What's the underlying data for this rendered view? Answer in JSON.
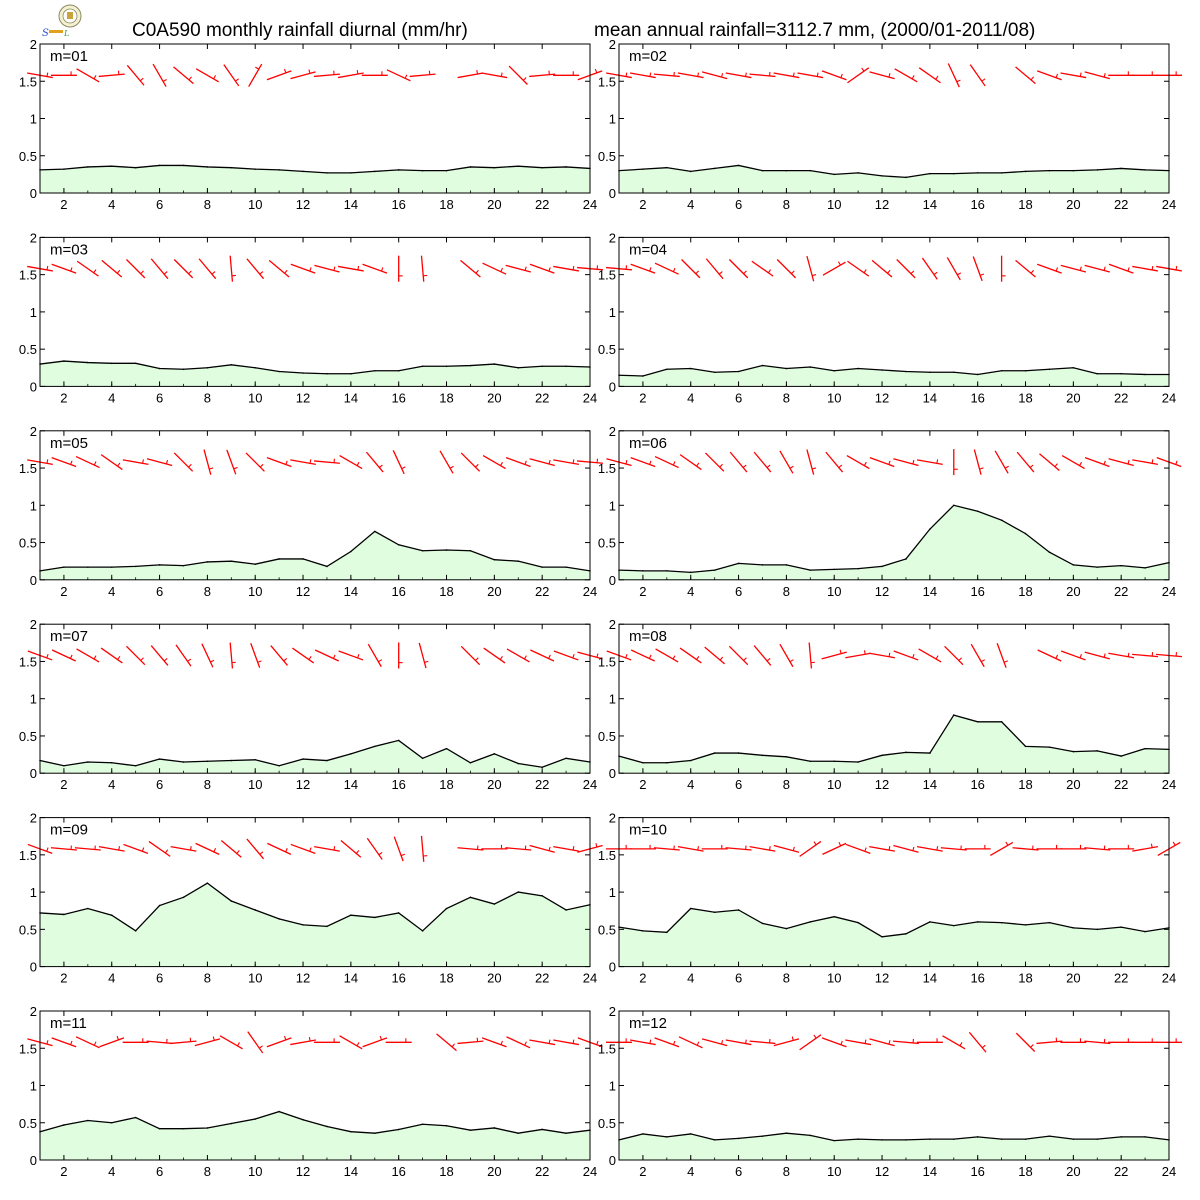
{
  "header": {
    "title_left": "C0A590 monthly rainfall diurnal (mm/hr)",
    "title_right": "mean annual rainfall=3112.7 mm, (2000/01-2011/08)",
    "logo": "lab-logo-icon"
  },
  "colors": {
    "fill": "#e0fde0",
    "line": "#000000",
    "wind": "#ff0000"
  },
  "chart_data": [
    {
      "type": "area",
      "label": "m=01",
      "x": [
        1,
        2,
        3,
        4,
        5,
        6,
        7,
        8,
        9,
        10,
        11,
        12,
        13,
        14,
        15,
        16,
        17,
        18,
        19,
        20,
        21,
        22,
        23,
        24
      ],
      "values": [
        0.31,
        0.32,
        0.35,
        0.36,
        0.34,
        0.37,
        0.37,
        0.35,
        0.34,
        0.32,
        0.31,
        0.29,
        0.27,
        0.27,
        0.29,
        0.31,
        0.3,
        0.3,
        0.35,
        0.34,
        0.36,
        0.34,
        0.35,
        0.33
      ],
      "wind_dir_deg": [
        100,
        90,
        120,
        85,
        140,
        150,
        130,
        120,
        145,
        30,
        70,
        75,
        85,
        80,
        90,
        115,
        85,
        null,
        80,
        100,
        135,
        85,
        90,
        70
      ],
      "xlim": [
        1,
        24
      ],
      "ylim": [
        0,
        2
      ],
      "xticks": [
        2,
        4,
        6,
        8,
        10,
        12,
        14,
        16,
        18,
        20,
        22,
        24
      ],
      "yticks": [
        0,
        0.5,
        1,
        1.5,
        2
      ]
    },
    {
      "type": "area",
      "label": "m=02",
      "x": [
        1,
        2,
        3,
        4,
        5,
        6,
        7,
        8,
        9,
        10,
        11,
        12,
        13,
        14,
        15,
        16,
        17,
        18,
        19,
        20,
        21,
        22,
        23,
        24
      ],
      "values": [
        0.3,
        0.32,
        0.34,
        0.29,
        0.33,
        0.37,
        0.3,
        0.3,
        0.3,
        0.25,
        0.27,
        0.23,
        0.21,
        0.26,
        0.26,
        0.27,
        0.27,
        0.29,
        0.3,
        0.3,
        0.31,
        0.33,
        0.31,
        0.3
      ],
      "wind_dir_deg": [
        100,
        100,
        95,
        100,
        105,
        100,
        95,
        100,
        100,
        110,
        55,
        105,
        120,
        125,
        155,
        145,
        null,
        130,
        110,
        100,
        105,
        90,
        90,
        90
      ],
      "xlim": [
        1,
        24
      ],
      "ylim": [
        0,
        2
      ],
      "xticks": [
        2,
        4,
        6,
        8,
        10,
        12,
        14,
        16,
        18,
        20,
        22,
        24
      ],
      "yticks": [
        0,
        0.5,
        1,
        1.5,
        2
      ]
    },
    {
      "type": "area",
      "label": "m=03",
      "x": [
        1,
        2,
        3,
        4,
        5,
        6,
        7,
        8,
        9,
        10,
        11,
        12,
        13,
        14,
        15,
        16,
        17,
        18,
        19,
        20,
        21,
        22,
        23,
        24
      ],
      "values": [
        0.3,
        0.34,
        0.32,
        0.31,
        0.31,
        0.24,
        0.23,
        0.25,
        0.29,
        0.25,
        0.2,
        0.18,
        0.17,
        0.17,
        0.21,
        0.21,
        0.27,
        0.27,
        0.28,
        0.3,
        0.25,
        0.27,
        0.27,
        0.26
      ],
      "wind_dir_deg": [
        100,
        110,
        125,
        130,
        135,
        140,
        135,
        140,
        175,
        140,
        130,
        110,
        105,
        100,
        110,
        180,
        175,
        null,
        130,
        115,
        105,
        110,
        100,
        95
      ],
      "xlim": [
        1,
        24
      ],
      "ylim": [
        0,
        2
      ],
      "xticks": [
        2,
        4,
        6,
        8,
        10,
        12,
        14,
        16,
        18,
        20,
        22,
        24
      ],
      "yticks": [
        0,
        0.5,
        1,
        1.5,
        2
      ]
    },
    {
      "type": "area",
      "label": "m=04",
      "x": [
        1,
        2,
        3,
        4,
        5,
        6,
        7,
        8,
        9,
        10,
        11,
        12,
        13,
        14,
        15,
        16,
        17,
        18,
        19,
        20,
        21,
        22,
        23,
        24
      ],
      "values": [
        0.15,
        0.14,
        0.23,
        0.24,
        0.19,
        0.2,
        0.28,
        0.24,
        0.26,
        0.21,
        0.24,
        0.22,
        0.2,
        0.19,
        0.19,
        0.16,
        0.21,
        0.21,
        0.23,
        0.25,
        0.17,
        0.17,
        0.16,
        0.16
      ],
      "wind_dir_deg": [
        95,
        110,
        115,
        135,
        140,
        135,
        125,
        135,
        165,
        60,
        125,
        130,
        135,
        145,
        150,
        160,
        180,
        130,
        110,
        105,
        105,
        110,
        100,
        100
      ],
      "xlim": [
        1,
        24
      ],
      "ylim": [
        0,
        2
      ],
      "xticks": [
        2,
        4,
        6,
        8,
        10,
        12,
        14,
        16,
        18,
        20,
        22,
        24
      ],
      "yticks": [
        0,
        0.5,
        1,
        1.5,
        2
      ]
    },
    {
      "type": "area",
      "label": "m=05",
      "x": [
        1,
        2,
        3,
        4,
        5,
        6,
        7,
        8,
        9,
        10,
        11,
        12,
        13,
        14,
        15,
        16,
        17,
        18,
        19,
        20,
        21,
        22,
        23,
        24
      ],
      "values": [
        0.12,
        0.17,
        0.17,
        0.17,
        0.18,
        0.2,
        0.19,
        0.24,
        0.25,
        0.21,
        0.28,
        0.28,
        0.18,
        0.38,
        0.65,
        0.47,
        0.39,
        0.4,
        0.39,
        0.27,
        0.25,
        0.17,
        0.17,
        0.12
      ],
      "wind_dir_deg": [
        100,
        110,
        115,
        125,
        100,
        105,
        135,
        165,
        160,
        135,
        110,
        100,
        95,
        120,
        140,
        155,
        null,
        150,
        135,
        120,
        110,
        105,
        100,
        95
      ],
      "xlim": [
        1,
        24
      ],
      "ylim": [
        0,
        2
      ],
      "xticks": [
        2,
        4,
        6,
        8,
        10,
        12,
        14,
        16,
        18,
        20,
        22,
        24
      ],
      "yticks": [
        0,
        0.5,
        1,
        1.5,
        2
      ]
    },
    {
      "type": "area",
      "label": "m=06",
      "x": [
        1,
        2,
        3,
        4,
        5,
        6,
        7,
        8,
        9,
        10,
        11,
        12,
        13,
        14,
        15,
        16,
        17,
        18,
        19,
        20,
        21,
        22,
        23,
        24
      ],
      "values": [
        0.13,
        0.12,
        0.12,
        0.1,
        0.13,
        0.22,
        0.2,
        0.2,
        0.13,
        0.14,
        0.15,
        0.18,
        0.28,
        0.68,
        1.0,
        0.92,
        0.8,
        0.62,
        0.37,
        0.2,
        0.17,
        0.19,
        0.16,
        0.23
      ],
      "wind_dir_deg": [
        105,
        110,
        115,
        125,
        135,
        140,
        140,
        150,
        165,
        140,
        120,
        110,
        105,
        100,
        180,
        165,
        150,
        140,
        130,
        120,
        110,
        105,
        100,
        110
      ],
      "xlim": [
        1,
        24
      ],
      "ylim": [
        0,
        2
      ],
      "xticks": [
        2,
        4,
        6,
        8,
        10,
        12,
        14,
        16,
        18,
        20,
        22,
        24
      ],
      "yticks": [
        0,
        0.5,
        1,
        1.5,
        2
      ]
    },
    {
      "type": "area",
      "label": "m=07",
      "x": [
        1,
        2,
        3,
        4,
        5,
        6,
        7,
        8,
        9,
        10,
        11,
        12,
        13,
        14,
        15,
        16,
        17,
        18,
        19,
        20,
        21,
        22,
        23,
        24
      ],
      "values": [
        0.17,
        0.1,
        0.15,
        0.14,
        0.1,
        0.19,
        0.15,
        0.16,
        0.17,
        0.18,
        0.1,
        0.19,
        0.17,
        0.26,
        0.36,
        0.44,
        0.2,
        0.33,
        0.14,
        0.26,
        0.13,
        0.08,
        0.2,
        0.15
      ],
      "wind_dir_deg": [
        110,
        115,
        120,
        125,
        135,
        140,
        145,
        155,
        175,
        160,
        140,
        125,
        115,
        110,
        150,
        180,
        165,
        null,
        135,
        125,
        120,
        115,
        110,
        105
      ],
      "xlim": [
        1,
        24
      ],
      "ylim": [
        0,
        2
      ],
      "xticks": [
        2,
        4,
        6,
        8,
        10,
        12,
        14,
        16,
        18,
        20,
        22,
        24
      ],
      "yticks": [
        0,
        0.5,
        1,
        1.5,
        2
      ]
    },
    {
      "type": "area",
      "label": "m=08",
      "x": [
        1,
        2,
        3,
        4,
        5,
        6,
        7,
        8,
        9,
        10,
        11,
        12,
        13,
        14,
        15,
        16,
        17,
        18,
        19,
        20,
        21,
        22,
        23,
        24
      ],
      "values": [
        0.23,
        0.14,
        0.14,
        0.17,
        0.27,
        0.27,
        0.24,
        0.22,
        0.16,
        0.16,
        0.15,
        0.24,
        0.28,
        0.27,
        0.78,
        0.69,
        0.69,
        0.36,
        0.35,
        0.29,
        0.3,
        0.23,
        0.33,
        0.32
      ],
      "wind_dir_deg": [
        110,
        115,
        120,
        125,
        130,
        135,
        140,
        150,
        175,
        75,
        80,
        100,
        110,
        120,
        135,
        150,
        160,
        null,
        115,
        110,
        105,
        100,
        95,
        95
      ],
      "xlim": [
        1,
        24
      ],
      "ylim": [
        0,
        2
      ],
      "xticks": [
        2,
        4,
        6,
        8,
        10,
        12,
        14,
        16,
        18,
        20,
        22,
        24
      ],
      "yticks": [
        0,
        0.5,
        1,
        1.5,
        2
      ]
    },
    {
      "type": "area",
      "label": "m=09",
      "x": [
        1,
        2,
        3,
        4,
        5,
        6,
        7,
        8,
        9,
        10,
        11,
        12,
        13,
        14,
        15,
        16,
        17,
        18,
        19,
        20,
        21,
        22,
        23,
        24
      ],
      "values": [
        0.72,
        0.7,
        0.78,
        0.69,
        0.48,
        0.82,
        0.93,
        1.12,
        0.88,
        0.76,
        0.64,
        0.56,
        0.54,
        0.69,
        0.66,
        0.72,
        0.48,
        0.78,
        0.93,
        0.84,
        1.0,
        0.95,
        0.76,
        0.83
      ],
      "wind_dir_deg": [
        110,
        95,
        95,
        100,
        110,
        125,
        100,
        115,
        130,
        140,
        115,
        110,
        100,
        130,
        145,
        160,
        175,
        null,
        95,
        90,
        95,
        105,
        100,
        75
      ],
      "xlim": [
        1,
        24
      ],
      "ylim": [
        0,
        2
      ],
      "xticks": [
        2,
        4,
        6,
        8,
        10,
        12,
        14,
        16,
        18,
        20,
        22,
        24
      ],
      "yticks": [
        0,
        0.5,
        1,
        1.5,
        2
      ]
    },
    {
      "type": "area",
      "label": "m=10",
      "x": [
        1,
        2,
        3,
        4,
        5,
        6,
        7,
        8,
        9,
        10,
        11,
        12,
        13,
        14,
        15,
        16,
        17,
        18,
        19,
        20,
        21,
        22,
        23,
        24
      ],
      "values": [
        0.53,
        0.48,
        0.46,
        0.78,
        0.73,
        0.76,
        0.58,
        0.51,
        0.6,
        0.67,
        0.59,
        0.4,
        0.44,
        0.6,
        0.55,
        0.6,
        0.59,
        0.56,
        0.59,
        0.52,
        0.5,
        0.53,
        0.47,
        0.52
      ],
      "wind_dir_deg": [
        90,
        90,
        95,
        100,
        90,
        95,
        100,
        105,
        55,
        65,
        110,
        100,
        105,
        100,
        95,
        90,
        60,
        95,
        90,
        90,
        95,
        90,
        80,
        60
      ],
      "xlim": [
        1,
        24
      ],
      "ylim": [
        0,
        2
      ],
      "xticks": [
        2,
        4,
        6,
        8,
        10,
        12,
        14,
        16,
        18,
        20,
        22,
        24
      ],
      "yticks": [
        0,
        0.5,
        1,
        1.5,
        2
      ]
    },
    {
      "type": "area",
      "label": "m=11",
      "x": [
        1,
        2,
        3,
        4,
        5,
        6,
        7,
        8,
        9,
        10,
        11,
        12,
        13,
        14,
        15,
        16,
        17,
        18,
        19,
        20,
        21,
        22,
        23,
        24
      ],
      "values": [
        0.38,
        0.47,
        0.53,
        0.5,
        0.57,
        0.42,
        0.42,
        0.43,
        0.49,
        0.55,
        0.65,
        0.54,
        0.45,
        0.38,
        0.36,
        0.41,
        0.48,
        0.46,
        0.4,
        0.43,
        0.36,
        0.41,
        0.36,
        0.4
      ],
      "wind_dir_deg": [
        105,
        110,
        115,
        70,
        90,
        95,
        85,
        75,
        120,
        145,
        70,
        80,
        90,
        120,
        70,
        90,
        null,
        130,
        85,
        110,
        115,
        100,
        100,
        110
      ],
      "xlim": [
        1,
        24
      ],
      "ylim": [
        0,
        2
      ],
      "xticks": [
        2,
        4,
        6,
        8,
        10,
        12,
        14,
        16,
        18,
        20,
        22,
        24
      ],
      "yticks": [
        0,
        0.5,
        1,
        1.5,
        2
      ]
    },
    {
      "type": "area",
      "label": "m=12",
      "x": [
        1,
        2,
        3,
        4,
        5,
        6,
        7,
        8,
        9,
        10,
        11,
        12,
        13,
        14,
        15,
        16,
        17,
        18,
        19,
        20,
        21,
        22,
        23,
        24
      ],
      "values": [
        0.27,
        0.35,
        0.31,
        0.35,
        0.27,
        0.29,
        0.32,
        0.36,
        0.33,
        0.26,
        0.28,
        0.27,
        0.27,
        0.28,
        0.28,
        0.31,
        0.28,
        0.28,
        0.32,
        0.28,
        0.28,
        0.31,
        0.31,
        0.27
      ],
      "wind_dir_deg": [
        90,
        100,
        110,
        115,
        105,
        100,
        95,
        75,
        55,
        110,
        100,
        105,
        95,
        90,
        120,
        140,
        null,
        135,
        85,
        90,
        95,
        90,
        90,
        90
      ],
      "xlim": [
        1,
        24
      ],
      "ylim": [
        0,
        2
      ],
      "xticks": [
        2,
        4,
        6,
        8,
        10,
        12,
        14,
        16,
        18,
        20,
        22,
        24
      ],
      "yticks": [
        0,
        0.5,
        1,
        1.5,
        2
      ]
    }
  ]
}
